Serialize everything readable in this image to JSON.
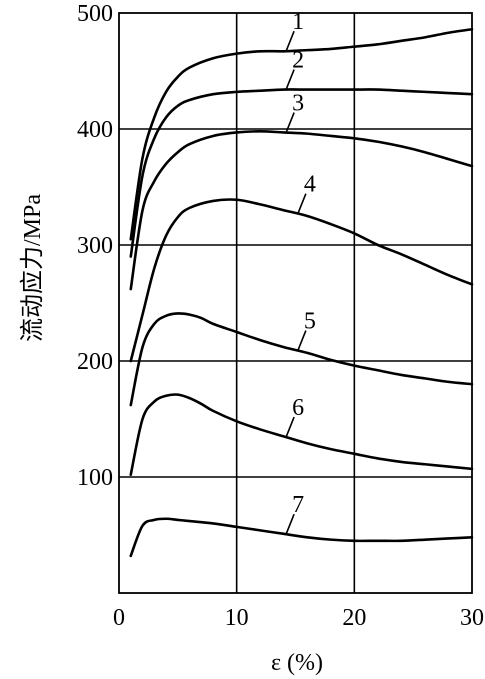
{
  "chart_data": {
    "type": "line",
    "xlabel": "ε (%)",
    "ylabel": "流动应力/MPa",
    "xlim": [
      0,
      30
    ],
    "ylim": [
      0,
      500
    ],
    "x_ticks": [
      0,
      10,
      20,
      30
    ],
    "y_ticks": [
      100,
      200,
      300,
      400,
      500
    ],
    "x_tick_labels": [
      "0",
      "10",
      "20",
      "30"
    ],
    "y_tick_labels": [
      "100",
      "200",
      "300",
      "400",
      "500"
    ],
    "grid": true,
    "legend": "none",
    "series": [
      {
        "name": "1",
        "x": [
          1,
          2,
          3,
          4,
          5,
          6,
          8,
          10,
          12,
          14,
          16,
          18,
          20,
          22,
          24,
          26,
          28,
          30
        ],
        "values": [
          305,
          375,
          410,
          432,
          445,
          453,
          461,
          465,
          467,
          467,
          468,
          469,
          471,
          473,
          476,
          479,
          483,
          486
        ]
      },
      {
        "name": "2",
        "x": [
          1,
          2,
          3,
          4,
          5,
          6,
          8,
          10,
          12,
          14,
          16,
          18,
          20,
          22,
          24,
          26,
          28,
          30
        ],
        "values": [
          290,
          360,
          392,
          410,
          420,
          425,
          430,
          432,
          433,
          434,
          434,
          434,
          434,
          434,
          433,
          432,
          431,
          430
        ]
      },
      {
        "name": "3",
        "x": [
          1,
          2,
          3,
          4,
          5,
          6,
          8,
          10,
          12,
          14,
          16,
          18,
          20,
          22,
          24,
          26,
          28,
          30
        ],
        "values": [
          262,
          330,
          355,
          370,
          380,
          387,
          394,
          397,
          398,
          397,
          396,
          394,
          392,
          389,
          385,
          380,
          374,
          368
        ]
      },
      {
        "name": "4",
        "x": [
          1,
          2,
          3,
          4,
          5,
          6,
          8,
          10,
          12,
          14,
          16,
          18,
          20,
          22,
          24,
          26,
          28,
          30
        ],
        "values": [
          200,
          240,
          280,
          308,
          324,
          332,
          338,
          339,
          335,
          330,
          325,
          318,
          310,
          300,
          292,
          283,
          274,
          266
        ]
      },
      {
        "name": "5",
        "x": [
          1,
          2,
          3,
          4,
          5,
          6,
          7,
          8,
          10,
          12,
          14,
          16,
          18,
          20,
          22,
          24,
          26,
          28,
          30
        ],
        "values": [
          162,
          212,
          232,
          239,
          241,
          240,
          237,
          232,
          225,
          218,
          212,
          207,
          201,
          196,
          192,
          188,
          185,
          182,
          180
        ]
      },
      {
        "name": "6",
        "x": [
          1,
          2,
          3,
          4,
          5,
          6,
          7,
          8,
          10,
          12,
          14,
          16,
          18,
          20,
          22,
          24,
          26,
          28,
          30
        ],
        "values": [
          102,
          150,
          165,
          170,
          171,
          168,
          163,
          157,
          148,
          141,
          135,
          129,
          124,
          120,
          116,
          113,
          111,
          109,
          107
        ]
      },
      {
        "name": "7",
        "x": [
          1,
          2,
          3,
          4,
          5,
          6,
          8,
          10,
          12,
          14,
          16,
          18,
          20,
          22,
          24,
          26,
          28,
          30
        ],
        "values": [
          32,
          58,
          63,
          64,
          63,
          62,
          60,
          57,
          54,
          51,
          48,
          46,
          45,
          45,
          45,
          46,
          47,
          48
        ]
      }
    ]
  }
}
